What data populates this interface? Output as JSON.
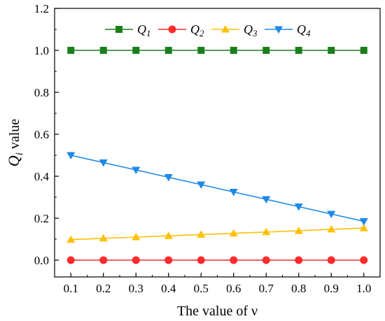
{
  "chart_data": {
    "type": "line",
    "x": [
      0.1,
      0.2,
      0.3,
      0.4,
      0.5,
      0.6,
      0.7,
      0.8,
      0.9,
      1.0
    ],
    "xlabel": "The value of ν",
    "ylabel": {
      "main": "Q",
      "sub": "i",
      "rest": " value"
    },
    "xlim": [
      0.05,
      1.05
    ],
    "ylim": [
      -0.08,
      1.2
    ],
    "xticks": [
      "0.1",
      "0.2",
      "0.3",
      "0.4",
      "0.5",
      "0.6",
      "0.7",
      "0.8",
      "0.9",
      "1.0"
    ],
    "yticks": [
      "0.0",
      "0.2",
      "0.4",
      "0.6",
      "0.8",
      "1.0",
      "1.2"
    ],
    "legend_position": "top",
    "grid": false,
    "series": [
      {
        "name": "Q",
        "sub": "1",
        "color": "#1a7f1a",
        "marker": "square",
        "values": [
          1.0,
          1.0,
          1.0,
          1.0,
          1.0,
          1.0,
          1.0,
          1.0,
          1.0,
          1.0
        ]
      },
      {
        "name": "Q",
        "sub": "2",
        "color": "#ff2a2a",
        "marker": "circle",
        "values": [
          0.0,
          0.0,
          0.0,
          0.0,
          0.0,
          0.0,
          0.0,
          0.0,
          0.0,
          0.0
        ]
      },
      {
        "name": "Q",
        "sub": "3",
        "color": "#ffc000",
        "marker": "triangle-up",
        "values": [
          0.098,
          0.104,
          0.11,
          0.116,
          0.122,
          0.128,
          0.134,
          0.14,
          0.147,
          0.153
        ]
      },
      {
        "name": "Q",
        "sub": "4",
        "color": "#1e88e5",
        "marker": "triangle-down",
        "values": [
          0.5,
          0.465,
          0.43,
          0.395,
          0.36,
          0.325,
          0.29,
          0.255,
          0.22,
          0.185
        ]
      }
    ]
  }
}
